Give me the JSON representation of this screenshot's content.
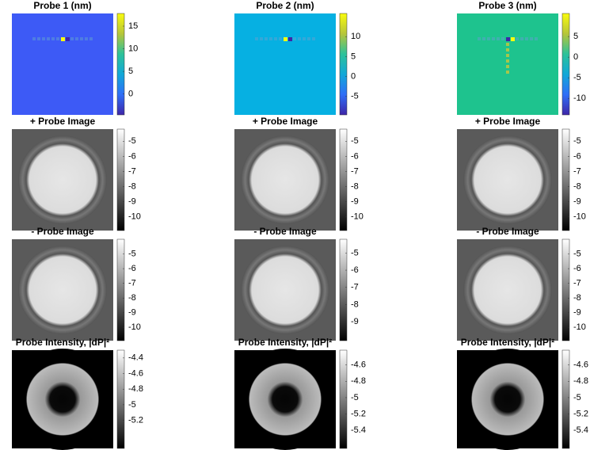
{
  "chart_data": [
    {
      "type": "heatmap",
      "title": "Probe 1 (nm)",
      "colormap": "parula",
      "clim": [
        -4.6,
        17.8
      ],
      "cticks": [
        15,
        10,
        5,
        0
      ]
    },
    {
      "type": "heatmap",
      "title": "Probe 2 (nm)",
      "colormap": "parula",
      "clim": [
        -9.6,
        15.8
      ],
      "cticks": [
        10,
        5,
        0,
        -5
      ]
    },
    {
      "type": "heatmap",
      "title": "Probe 3 (nm)",
      "colormap": "parula",
      "clim": [
        -14,
        10.6
      ],
      "cticks": [
        5,
        0,
        -5,
        -10
      ]
    },
    {
      "type": "heatmap",
      "title": "+ Probe Image",
      "colormap": "gray",
      "clim": [
        -10.9,
        -4.2
      ],
      "cticks": [
        -5,
        -6,
        -7,
        -8,
        -9,
        -10
      ]
    },
    {
      "type": "heatmap",
      "title": "+ Probe Image",
      "colormap": "gray",
      "clim": [
        -10.9,
        -4.2
      ],
      "cticks": [
        -5,
        -6,
        -7,
        -8,
        -9,
        -10
      ]
    },
    {
      "type": "heatmap",
      "title": "+ Probe Image",
      "colormap": "gray",
      "clim": [
        -10.9,
        -4.2
      ],
      "cticks": [
        -5,
        -6,
        -7,
        -8,
        -9,
        -10
      ]
    },
    {
      "type": "heatmap",
      "title": "- Probe Image",
      "colormap": "gray",
      "clim": [
        -10.9,
        -4.0
      ],
      "cticks": [
        -5,
        -6,
        -7,
        -8,
        -9,
        -10
      ]
    },
    {
      "type": "heatmap",
      "title": "- Probe Image",
      "colormap": "gray",
      "clim": [
        -10.1,
        -4.2
      ],
      "cticks": [
        -5,
        -6,
        -7,
        -8,
        -9
      ]
    },
    {
      "type": "heatmap",
      "title": "- Probe Image",
      "colormap": "gray",
      "clim": [
        -10.9,
        -4.0
      ],
      "cticks": [
        -5,
        -6,
        -7,
        -8,
        -9,
        -10
      ]
    },
    {
      "type": "heatmap",
      "title": "Probe Intensity, |dP|²",
      "colormap": "gray",
      "clim": [
        -5.56,
        -4.3
      ],
      "cticks": [
        -4.4,
        -4.6,
        -4.8,
        -5,
        -5.2
      ]
    },
    {
      "type": "heatmap",
      "title": "Probe Intensity, |dP|²",
      "colormap": "gray",
      "clim": [
        -5.62,
        -4.42
      ],
      "cticks": [
        -4.6,
        -4.8,
        -5,
        -5.2,
        -5.4
      ]
    },
    {
      "type": "heatmap",
      "title": "Probe Intensity, |dP|²",
      "colormap": "gray",
      "clim": [
        -5.62,
        -4.42
      ],
      "cticks": [
        -4.6,
        -4.8,
        -5,
        -5.2,
        -5.4
      ]
    }
  ]
}
